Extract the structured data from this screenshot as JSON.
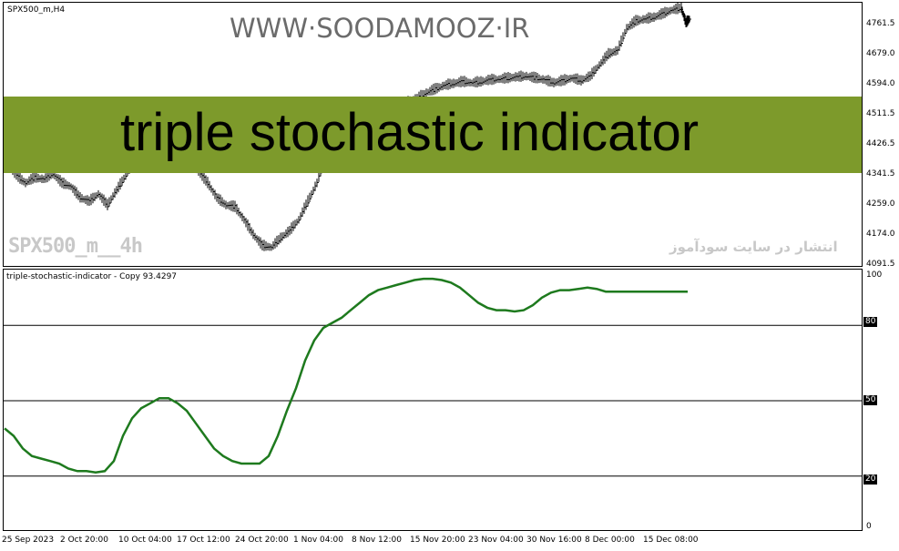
{
  "chart": {
    "symbol_label": "SPX500_m,H4",
    "watermark": "WWW·SOODAMOOZ·IR",
    "banner_title": "triple stochastic indicator",
    "symbol_watermark": "SPX500_m__4h",
    "arabic_caption": "انتشار در سایت سودآموز",
    "banner_color": "#7d9a2b",
    "indicator_color": "#1e7a1e"
  },
  "price_axis": [
    "4761.5",
    "4679.0",
    "4594.0",
    "4511.5",
    "4426.5",
    "4341.5",
    "4259.0",
    "4174.0",
    "4091.5"
  ],
  "indicator": {
    "label": "triple-stochastic-indicator - Copy 93.4297",
    "axis": [
      "100",
      "80",
      "50",
      "20",
      "0"
    ],
    "levels": [
      80,
      50,
      20
    ]
  },
  "time_axis": [
    "25 Sep 2023",
    "2 Oct 20:00",
    "10 Oct 04:00",
    "17 Oct 12:00",
    "24 Oct 20:00",
    "1 Nov 04:00",
    "8 Nov 12:00",
    "15 Nov 20:00",
    "23 Nov 04:00",
    "30 Nov 16:00",
    "8 Dec 00:00",
    "15 Dec 08:00"
  ],
  "chart_data": {
    "type": "line",
    "price_series": {
      "name": "SPX500_m,H4",
      "ylim": [
        4070,
        4790
      ],
      "x": [
        0,
        10,
        20,
        30,
        40,
        50,
        60,
        70,
        80,
        90,
        100,
        110,
        120,
        130,
        140,
        150,
        160,
        170,
        180,
        190,
        200,
        210,
        220,
        230,
        240,
        250,
        260,
        270,
        280,
        290,
        300,
        310,
        320,
        330,
        340,
        350,
        360,
        370,
        380,
        390,
        400,
        410,
        420,
        430,
        440,
        450,
        460,
        470,
        480,
        490,
        500,
        510,
        520,
        530,
        540,
        550,
        560,
        570,
        580,
        590,
        600,
        610,
        620,
        630,
        640,
        650,
        660,
        670,
        680,
        690,
        700,
        710,
        720,
        730,
        740,
        745,
        750
      ],
      "values": [
        4350,
        4320,
        4300,
        4315,
        4310,
        4325,
        4300,
        4290,
        4260,
        4250,
        4270,
        4240,
        4280,
        4320,
        4360,
        4380,
        4370,
        4365,
        4380,
        4372,
        4360,
        4330,
        4300,
        4260,
        4240,
        4235,
        4200,
        4160,
        4130,
        4125,
        4150,
        4170,
        4200,
        4250,
        4300,
        4380,
        4420,
        4450,
        4460,
        4470,
        4480,
        4485,
        4490,
        4495,
        4520,
        4530,
        4545,
        4555,
        4565,
        4570,
        4575,
        4572,
        4575,
        4580,
        4582,
        4585,
        4588,
        4590,
        4585,
        4580,
        4572,
        4578,
        4585,
        4578,
        4590,
        4620,
        4650,
        4660,
        4720,
        4740,
        4745,
        4750,
        4760,
        4770,
        4775,
        4735,
        4748
      ]
    },
    "indicator_series": {
      "name": "triple-stochastic-indicator - Copy",
      "ylim": [
        0,
        100
      ],
      "x": [
        0,
        10,
        20,
        30,
        40,
        50,
        60,
        70,
        80,
        90,
        100,
        110,
        120,
        130,
        140,
        150,
        160,
        170,
        180,
        190,
        200,
        210,
        220,
        230,
        240,
        250,
        260,
        270,
        280,
        290,
        300,
        310,
        320,
        330,
        340,
        350,
        360,
        370,
        380,
        390,
        400,
        410,
        420,
        430,
        440,
        450,
        460,
        470,
        480,
        490,
        500,
        510,
        520,
        530,
        540,
        550,
        560,
        570,
        580,
        590,
        600,
        610,
        620,
        630,
        640,
        650,
        660,
        670,
        680,
        690,
        700,
        710,
        720,
        730,
        740,
        745,
        750
      ],
      "values": [
        39,
        36,
        31,
        28,
        27,
        26,
        25,
        23,
        22,
        22,
        21.5,
        22,
        26,
        36,
        43,
        47,
        49,
        51,
        51,
        49,
        46,
        41,
        36,
        31,
        28,
        26,
        25,
        25,
        25,
        28,
        36,
        46,
        55,
        66,
        74,
        79,
        81,
        83,
        86,
        89,
        92,
        94,
        95,
        96,
        97,
        98,
        98.5,
        98.5,
        98,
        97,
        95,
        92,
        89,
        87,
        86,
        86,
        85.5,
        86,
        88,
        91,
        93,
        94,
        94,
        94.5,
        95,
        94.5,
        93.4,
        93.4,
        93.4,
        93.4,
        93.4,
        93.4,
        93.4,
        93.4,
        93.4,
        93.4,
        93.4
      ]
    },
    "xlabel": "",
    "ylabel": "",
    "grid": false
  }
}
